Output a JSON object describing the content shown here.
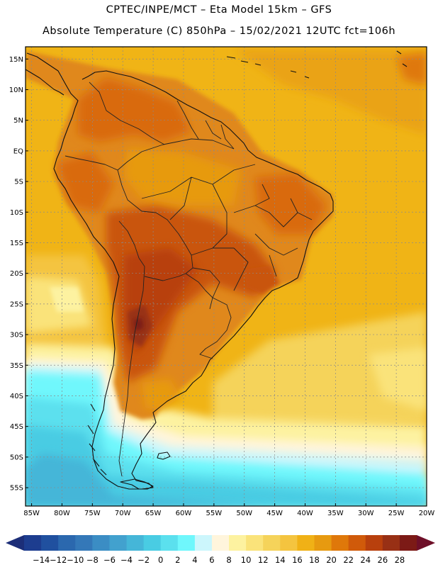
{
  "header": {
    "line1": "CPTEC/INPE/MCT –  Eta Model 15km – GFS",
    "line2": "Absolute Temperature (C) 850hPa – 15/02/2021 12UTC fct=106h"
  },
  "map": {
    "region": "South America",
    "lon_range": [
      -86,
      -20
    ],
    "lat_range": [
      -58,
      17
    ],
    "lat_labels": [
      "15N",
      "10N",
      "5N",
      "EQ",
      "5S",
      "10S",
      "15S",
      "20S",
      "25S",
      "30S",
      "35S",
      "40S",
      "45S",
      "50S",
      "55S"
    ],
    "lat_values": [
      15,
      10,
      5,
      0,
      -5,
      -10,
      -15,
      -20,
      -25,
      -30,
      -35,
      -40,
      -45,
      -50,
      -55
    ],
    "lon_labels": [
      "85W",
      "80W",
      "75W",
      "70W",
      "65W",
      "60W",
      "55W",
      "50W",
      "45W",
      "40W",
      "35W",
      "30W",
      "25W",
      "20W"
    ],
    "lon_values": [
      -85,
      -80,
      -75,
      -70,
      -65,
      -60,
      -55,
      -50,
      -45,
      -40,
      -35,
      -30,
      -25,
      -20
    ],
    "ocean_color": "#f0b416"
  },
  "colorbar": {
    "labels": [
      "-14",
      "-12",
      "-10",
      "-8",
      "-6",
      "-4",
      "-2",
      "0",
      "2",
      "4",
      "6",
      "8",
      "10",
      "12",
      "14",
      "16",
      "18",
      "20",
      "22",
      "24",
      "26",
      "28"
    ],
    "colors": [
      "#1d3d8f",
      "#20509f",
      "#2b68ae",
      "#3478b8",
      "#3b8dc4",
      "#42a1ce",
      "#45b6d8",
      "#49cce3",
      "#5be0ee",
      "#6ff7fc",
      "#ccf6fc",
      "#fff5dc",
      "#fdf2a0",
      "#fae37a",
      "#f5d35a",
      "#f4c43f",
      "#f0b116",
      "#e79a10",
      "#df780a",
      "#d05a0a",
      "#b8400d",
      "#983015",
      "#7c1a16"
    ],
    "low_color": "#1c2e78",
    "high_color": "#6e0f28"
  }
}
